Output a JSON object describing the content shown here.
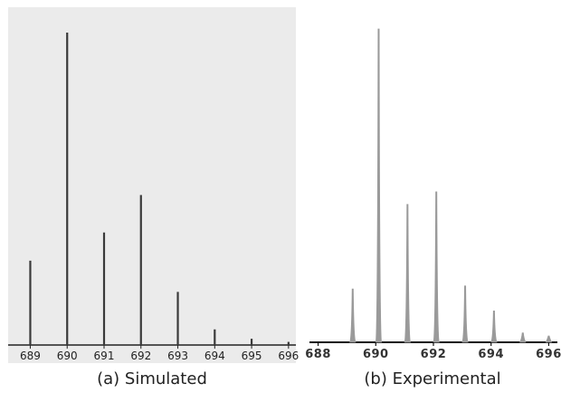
{
  "chart_data": [
    {
      "type": "bar",
      "caption": "(a) Simulated",
      "background": "#ebebeb",
      "bar_color": "#3a3a3a",
      "x": [
        689,
        690,
        691,
        692,
        693,
        694,
        695,
        696
      ],
      "tick_labels": [
        "689",
        "690",
        "691",
        "692",
        "693",
        "694",
        "695",
        "696"
      ],
      "values": [
        27,
        100,
        36,
        48,
        17,
        5,
        2,
        1
      ],
      "xlim": [
        688.4,
        696.2
      ],
      "ylim": [
        0,
        100
      ],
      "grid": false
    },
    {
      "type": "line",
      "caption": "(b) Experimental",
      "background": "#ffffff",
      "line_color": "#9a9a9a",
      "x": [
        689.2,
        690.1,
        691.1,
        692.1,
        693.1,
        694.1,
        695.1,
        696.0
      ],
      "tick_positions": [
        688,
        690,
        692,
        694,
        696
      ],
      "tick_labels": [
        "688",
        "690",
        "692",
        "694",
        "696"
      ],
      "values": [
        17,
        100,
        44,
        48,
        18,
        10,
        3,
        2
      ],
      "xlim": [
        687.7,
        696.3
      ],
      "ylim": [
        0,
        100
      ],
      "grid": false
    }
  ]
}
